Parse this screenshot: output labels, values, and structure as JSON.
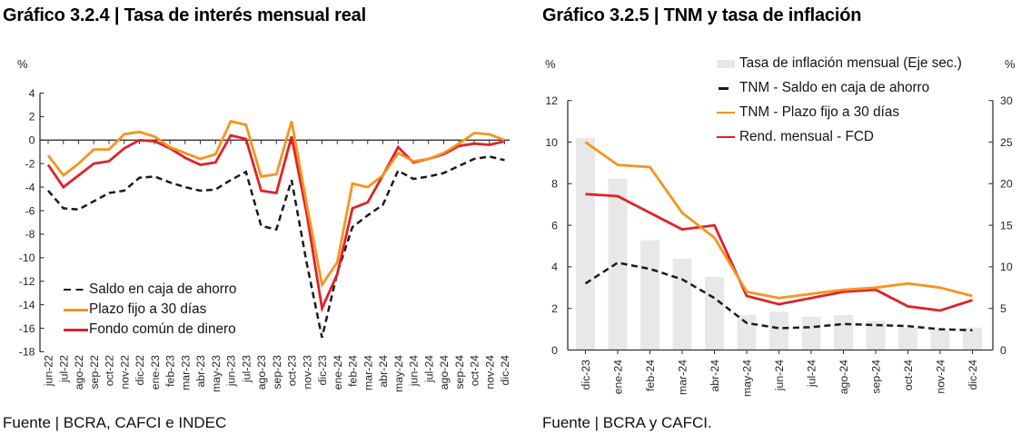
{
  "page": {
    "background": "#ffffff"
  },
  "colors": {
    "orange": "#F7941E",
    "red": "#E02128",
    "black_line": "#1A1A1A",
    "bar_gray": "#E8E8E8",
    "axis": "#333333",
    "tick_text": "#262626"
  },
  "chart_data": [
    {
      "type": "line",
      "title": "Gráfico 3.2.4 | Tasa de interés mensual real",
      "source": "Fuente | BCRA, CAFCI e INDEC",
      "ylabel": "%",
      "ylim": [
        -18,
        4
      ],
      "yticks": [
        4,
        2,
        0,
        -2,
        -4,
        -6,
        -8,
        -10,
        -12,
        -14,
        -16,
        -18
      ],
      "grid": false,
      "legend_position": "inside-lower-left",
      "categories": [
        "jun-22",
        "jul-22",
        "ago-22",
        "sep-22",
        "oct-22",
        "nov-22",
        "dic-22",
        "ene-23",
        "feb-23",
        "mar-23",
        "abr-23",
        "may-23",
        "jun-23",
        "jul-23",
        "ago-23",
        "sep-23",
        "oct-23",
        "nov-23",
        "dic-23",
        "ene-24",
        "feb-24",
        "mar-24",
        "abr-24",
        "may-24",
        "jun-24",
        "jul-24",
        "ago-24",
        "sep-24",
        "oct-24",
        "nov-24",
        "dic-24"
      ],
      "series": [
        {
          "name": "Saldo en caja de ahorro",
          "color": "#1A1A1A",
          "dash": true,
          "values": [
            -4.3,
            -5.8,
            -5.9,
            -5.2,
            -4.5,
            -4.3,
            -3.2,
            -3.1,
            -3.6,
            -4.0,
            -4.3,
            -4.2,
            -3.4,
            -2.7,
            -7.3,
            -7.6,
            -3.4,
            -10.5,
            -16.8,
            -11.3,
            -7.4,
            -6.4,
            -5.5,
            -2.6,
            -3.3,
            -3.1,
            -2.8,
            -2.2,
            -1.6,
            -1.4,
            -1.7
          ]
        },
        {
          "name": "Plazo fijo a 30 días",
          "color": "#F7941E",
          "dash": false,
          "values": [
            -1.3,
            -3.0,
            -2.0,
            -0.8,
            -0.8,
            0.5,
            0.7,
            0.3,
            -0.6,
            -1.1,
            -1.6,
            -1.2,
            1.6,
            1.3,
            -3.1,
            -2.9,
            1.6,
            -5.5,
            -12.3,
            -10.4,
            -3.7,
            -4.0,
            -3.0,
            -1.1,
            -1.8,
            -1.6,
            -1.1,
            -0.3,
            0.6,
            0.5,
            0.0
          ]
        },
        {
          "name": "Fondo común de dinero",
          "color": "#E02128",
          "dash": false,
          "values": [
            -2.1,
            -4.0,
            -3.0,
            -2.0,
            -1.8,
            -0.7,
            0.0,
            -0.1,
            -0.7,
            -1.5,
            -2.1,
            -1.9,
            0.4,
            0.1,
            -4.3,
            -4.5,
            0.3,
            -6.3,
            -14.3,
            -11.4,
            -5.8,
            -5.3,
            -3.0,
            -0.6,
            -1.9,
            -1.6,
            -1.2,
            -0.5,
            -0.3,
            -0.4,
            -0.1
          ]
        }
      ]
    },
    {
      "type": "bar+line",
      "title": "Gráfico 3.2.5 | TNM y tasa de inflación",
      "source": "Fuente | BCRA y CAFCI.",
      "ylabel_left": "%",
      "ylabel_right": "%",
      "ylim_left": [
        0,
        12
      ],
      "ylim_right": [
        0,
        30
      ],
      "yticks_left": [
        0,
        2,
        4,
        6,
        8,
        10,
        12
      ],
      "yticks_right": [
        0,
        5,
        10,
        15,
        20,
        25,
        30
      ],
      "grid": false,
      "legend_position": "top",
      "categories": [
        "dic-23",
        "ene-24",
        "feb-24",
        "mar-24",
        "abr-24",
        "may-24",
        "jun-24",
        "jul-24",
        "ago-24",
        "sep-24",
        "oct-24",
        "nov-24",
        "dic-24"
      ],
      "bars": {
        "name": "Tasa de inflación mensual (Eje sec.)",
        "axis": "right",
        "color": "#E8E8E8",
        "values": [
          25.5,
          20.6,
          13.2,
          11.0,
          8.8,
          4.2,
          4.6,
          4.0,
          4.2,
          3.5,
          2.7,
          2.4,
          2.7
        ]
      },
      "series": [
        {
          "name": "TNM - Saldo en caja de ahorro",
          "color": "#1A1A1A",
          "dash": true,
          "axis": "left",
          "values": [
            3.2,
            4.2,
            3.9,
            3.4,
            2.5,
            1.3,
            1.05,
            1.1,
            1.25,
            1.2,
            1.15,
            1.0,
            0.95
          ]
        },
        {
          "name": "TNM - Plazo fijo a 30 días",
          "color": "#F7941E",
          "dash": false,
          "axis": "left",
          "values": [
            10.0,
            8.9,
            8.8,
            6.6,
            5.4,
            2.8,
            2.5,
            2.7,
            2.9,
            3.0,
            3.2,
            3.0,
            2.6
          ]
        },
        {
          "name": "Rend. mensual - FCD",
          "color": "#E02128",
          "dash": false,
          "axis": "left",
          "values": [
            7.5,
            7.4,
            6.6,
            5.8,
            6.0,
            2.6,
            2.2,
            2.5,
            2.8,
            2.9,
            2.1,
            1.9,
            2.4
          ]
        }
      ]
    }
  ]
}
